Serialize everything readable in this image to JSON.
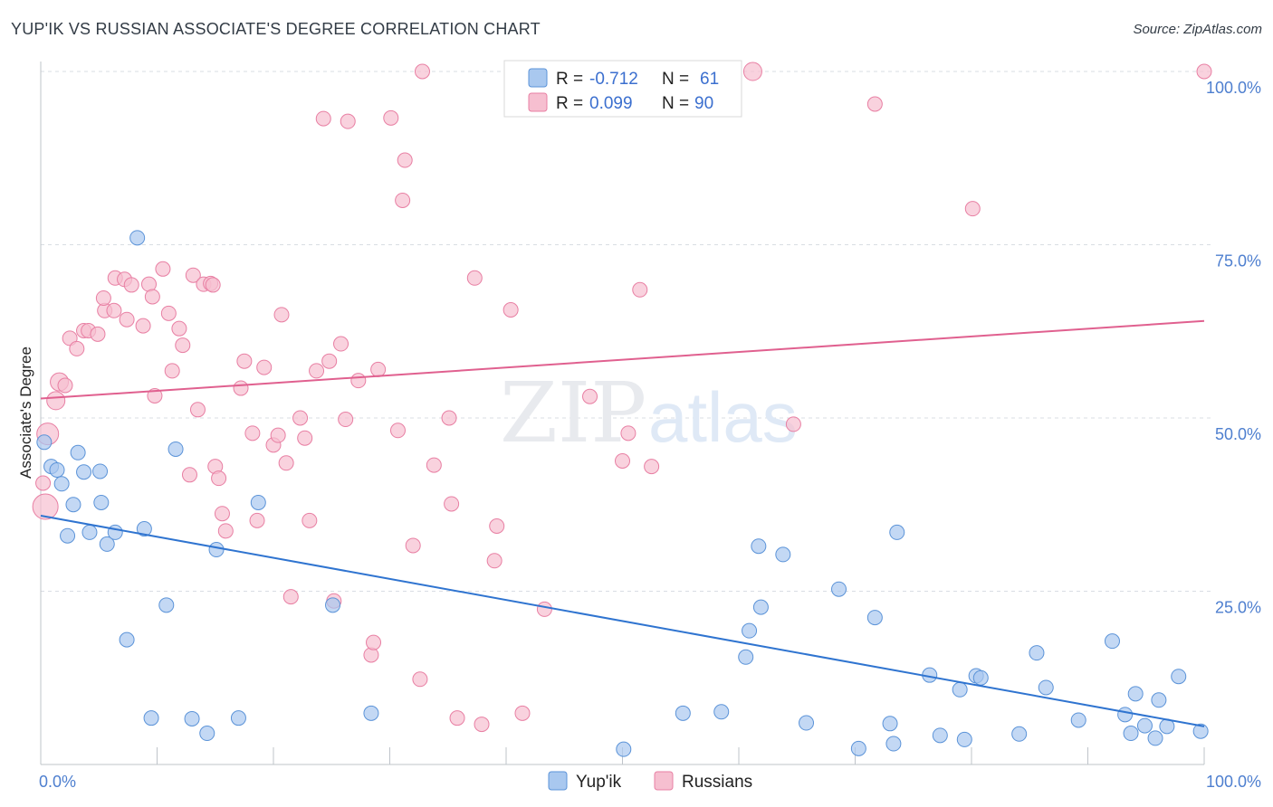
{
  "title": "YUP'IK VS RUSSIAN ASSOCIATE'S DEGREE CORRELATION CHART",
  "source": "Source: ZipAtlas.com",
  "watermark": {
    "zip": "ZIP",
    "atlas": "atlas"
  },
  "chart_data": {
    "type": "scatter",
    "ylabel": "Associate's Degree",
    "xlim": [
      0,
      100
    ],
    "ylim": [
      0,
      100
    ],
    "x_tick_labels": [
      {
        "value": 0,
        "label": "0.0%"
      },
      {
        "value": 100,
        "label": "100.0%"
      }
    ],
    "y_tick_labels": [
      {
        "value": 25,
        "label": "25.0%"
      },
      {
        "value": 50,
        "label": "50.0%"
      },
      {
        "value": 75,
        "label": "75.0%"
      },
      {
        "value": 100,
        "label": "100.0%"
      }
    ],
    "grid": true,
    "legend_position": "top-center",
    "series": [
      {
        "name": "Yup'ik",
        "color": "#a9c8ef",
        "stroke": "#5b93d8",
        "line_color": "#2f74d0",
        "R": "-0.712",
        "N": "61",
        "trend": [
          [
            0,
            35.9
          ],
          [
            100,
            5.5
          ]
        ],
        "points": [
          [
            0.3,
            46.5
          ],
          [
            0.9,
            43
          ],
          [
            1.4,
            42.5
          ],
          [
            1.8,
            40.5
          ],
          [
            2.3,
            33
          ],
          [
            2.8,
            37.5
          ],
          [
            3.2,
            45
          ],
          [
            3.7,
            42.2
          ],
          [
            4.2,
            33.5
          ],
          [
            5.1,
            42.3
          ],
          [
            5.2,
            37.8
          ],
          [
            5.7,
            31.8
          ],
          [
            6.4,
            33.5
          ],
          [
            7.4,
            18
          ],
          [
            8.3,
            76
          ],
          [
            8.9,
            34
          ],
          [
            9.5,
            6.7
          ],
          [
            10.8,
            23
          ],
          [
            11.6,
            45.5
          ],
          [
            13.0,
            6.6
          ],
          [
            14.3,
            4.5
          ],
          [
            15.1,
            31
          ],
          [
            17.0,
            6.7
          ],
          [
            18.7,
            37.8
          ],
          [
            25.1,
            23
          ],
          [
            28.4,
            7.4
          ],
          [
            50.1,
            2.2
          ],
          [
            55.2,
            7.4
          ],
          [
            58.5,
            7.6
          ],
          [
            60.6,
            15.5
          ],
          [
            60.9,
            19.3
          ],
          [
            61.7,
            31.5
          ],
          [
            61.9,
            22.7
          ],
          [
            63.8,
            30.3
          ],
          [
            65.8,
            6.0
          ],
          [
            68.6,
            25.3
          ],
          [
            70.3,
            2.3
          ],
          [
            71.7,
            21.2
          ],
          [
            73.0,
            5.9
          ],
          [
            73.3,
            3.0
          ],
          [
            73.6,
            33.5
          ],
          [
            76.4,
            12.9
          ],
          [
            77.3,
            4.2
          ],
          [
            79.0,
            10.8
          ],
          [
            79.4,
            3.6
          ],
          [
            80.4,
            12.8
          ],
          [
            80.8,
            12.5
          ],
          [
            84.1,
            4.4
          ],
          [
            85.6,
            16.1
          ],
          [
            86.4,
            11.1
          ],
          [
            89.2,
            6.4
          ],
          [
            92.1,
            17.8
          ],
          [
            93.2,
            7.2
          ],
          [
            93.7,
            4.5
          ],
          [
            94.1,
            10.2
          ],
          [
            94.9,
            5.6
          ],
          [
            95.8,
            3.8
          ],
          [
            96.1,
            9.3
          ],
          [
            96.8,
            5.5
          ],
          [
            97.8,
            12.7
          ],
          [
            99.7,
            4.8
          ]
        ]
      },
      {
        "name": "Russians",
        "color": "#f6bfd0",
        "stroke": "#e87fa3",
        "line_color": "#e0608f",
        "R": "0.099",
        "N": "90",
        "trend": [
          [
            0,
            52.8
          ],
          [
            100,
            64.0
          ]
        ],
        "points": [
          [
            0.4,
            37.2,
            14
          ],
          [
            0.6,
            47.7,
            12
          ],
          [
            1.3,
            52.5,
            10
          ],
          [
            1.6,
            55.2,
            10
          ],
          [
            2.1,
            54.7,
            8
          ],
          [
            2.5,
            61.5,
            8
          ],
          [
            3.1,
            60,
            8
          ],
          [
            3.7,
            62.6,
            8
          ],
          [
            4.1,
            62.6,
            8
          ],
          [
            4.9,
            62.1,
            8
          ],
          [
            5.5,
            65.5,
            8
          ],
          [
            5.4,
            67.3,
            8
          ],
          [
            6.3,
            65.5,
            8
          ],
          [
            6.4,
            70.2,
            8
          ],
          [
            7.2,
            70,
            8
          ],
          [
            7.4,
            64.2,
            8
          ],
          [
            7.8,
            69.2,
            8
          ],
          [
            8.8,
            63.3,
            8
          ],
          [
            9.3,
            69.3,
            8
          ],
          [
            9.6,
            67.5,
            8
          ],
          [
            9.8,
            53.2,
            8
          ],
          [
            10.5,
            71.5,
            8
          ],
          [
            11.0,
            65.1,
            8
          ],
          [
            11.3,
            56.8,
            8
          ],
          [
            11.9,
            62.9,
            8
          ],
          [
            12.2,
            60.5,
            8
          ],
          [
            12.8,
            41.8,
            8
          ],
          [
            13.1,
            70.6,
            8
          ],
          [
            13.5,
            51.2,
            8
          ],
          [
            14.0,
            69.3,
            8
          ],
          [
            14.6,
            69.4,
            8
          ],
          [
            14.8,
            69.2,
            8
          ],
          [
            15.0,
            43,
            8
          ],
          [
            15.3,
            41.3,
            8
          ],
          [
            15.6,
            36.2,
            8
          ],
          [
            15.9,
            33.7,
            8
          ],
          [
            17.2,
            54.3,
            8
          ],
          [
            17.5,
            58.2,
            8
          ],
          [
            18.2,
            47.8,
            8
          ],
          [
            18.6,
            35.2,
            8
          ],
          [
            19.2,
            57.3,
            8
          ],
          [
            20.0,
            46.1,
            8
          ],
          [
            20.4,
            47.5,
            8
          ],
          [
            20.7,
            64.9,
            8
          ],
          [
            21.1,
            43.5,
            8
          ],
          [
            21.5,
            24.2,
            8
          ],
          [
            22.3,
            50,
            8
          ],
          [
            22.7,
            47.1,
            8
          ],
          [
            23.1,
            35.2,
            8
          ],
          [
            23.7,
            56.8,
            8
          ],
          [
            24.3,
            93.2,
            8
          ],
          [
            24.8,
            58.2,
            8
          ],
          [
            25.2,
            23.6,
            8
          ],
          [
            25.8,
            60.7,
            8
          ],
          [
            26.2,
            49.8,
            8
          ],
          [
            26.4,
            92.8,
            8
          ],
          [
            27.3,
            55.4,
            8
          ],
          [
            28.4,
            15.8,
            8
          ],
          [
            28.6,
            17.6,
            8
          ],
          [
            29.0,
            57,
            8
          ],
          [
            30.1,
            93.3,
            8
          ],
          [
            30.7,
            48.2,
            8
          ],
          [
            31.3,
            87.2,
            8
          ],
          [
            31.1,
            81.4,
            8
          ],
          [
            32.0,
            31.6,
            8
          ],
          [
            32.6,
            12.3,
            8
          ],
          [
            32.8,
            100,
            8
          ],
          [
            33.8,
            43.2,
            8
          ],
          [
            35.1,
            50,
            8
          ],
          [
            35.3,
            37.6,
            8
          ],
          [
            35.8,
            6.7,
            8
          ],
          [
            37.3,
            70.2,
            8
          ],
          [
            37.9,
            5.8,
            8
          ],
          [
            39.0,
            29.4,
            8
          ],
          [
            39.2,
            34.4,
            8
          ],
          [
            40.4,
            65.6,
            8
          ],
          [
            41.4,
            7.4,
            8
          ],
          [
            43.3,
            22.4,
            8
          ],
          [
            47.2,
            53.1,
            8
          ],
          [
            50.0,
            43.8,
            8
          ],
          [
            50.5,
            47.8,
            8
          ],
          [
            51.5,
            68.5,
            8
          ],
          [
            52.5,
            43,
            8
          ],
          [
            59.6,
            100,
            8
          ],
          [
            61.2,
            100,
            10
          ],
          [
            64.7,
            49.1,
            8
          ],
          [
            71.7,
            95.3,
            8
          ],
          [
            80.1,
            80.2,
            8
          ],
          [
            100.0,
            100,
            8
          ],
          [
            0.2,
            40.6,
            8
          ]
        ]
      }
    ]
  },
  "legend": {
    "r_label": "R =",
    "n_label": "N ="
  }
}
